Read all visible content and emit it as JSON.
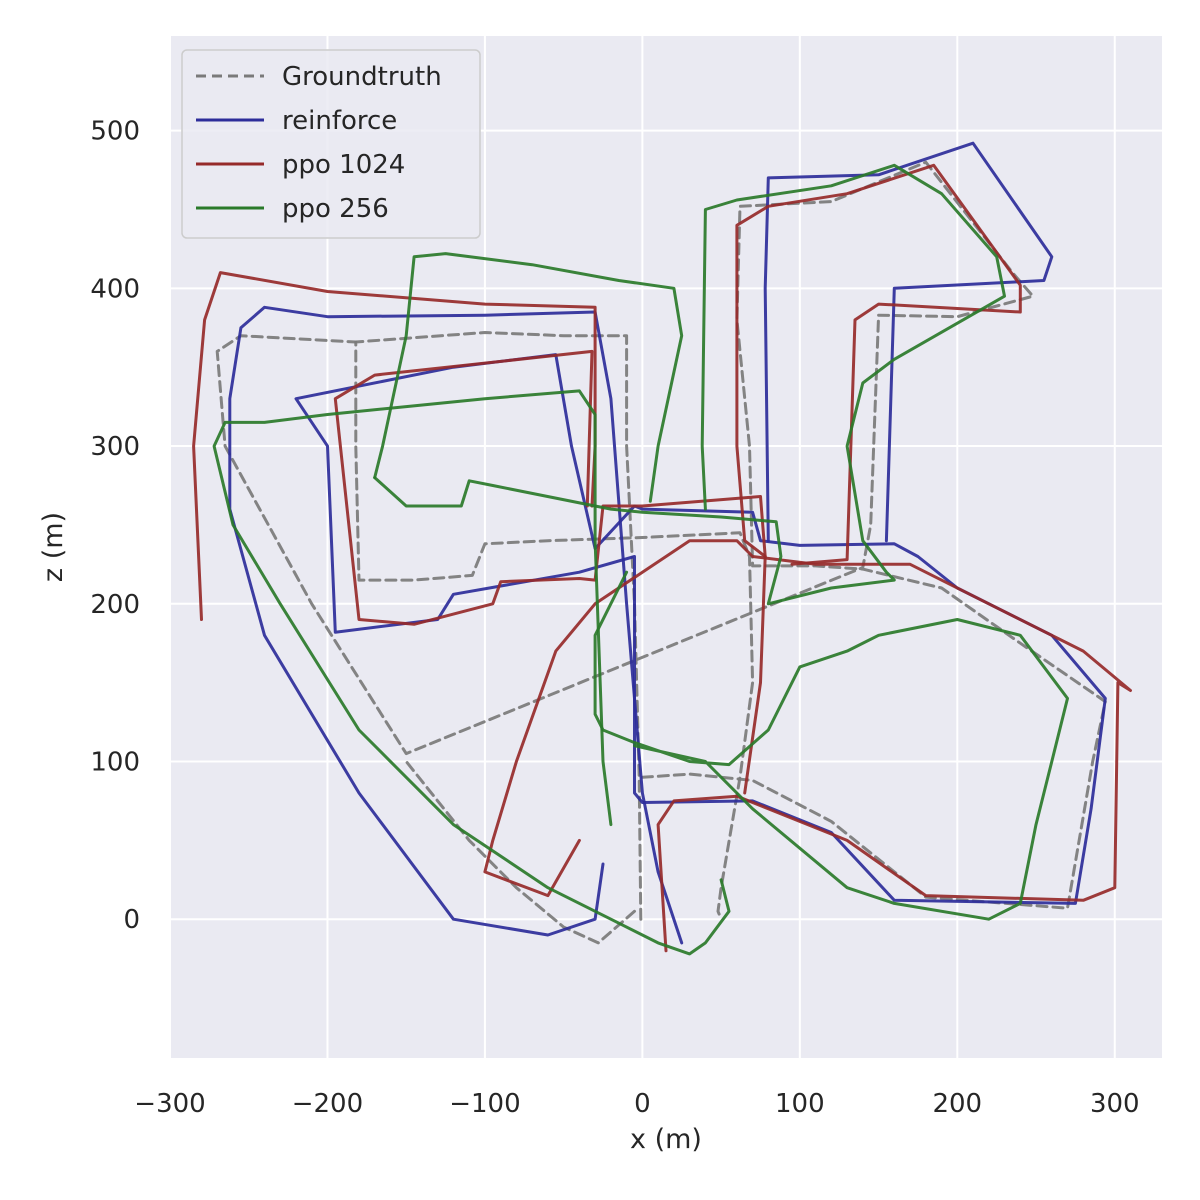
{
  "chart_data": {
    "type": "line",
    "xlabel": "x (m)",
    "ylabel": "z (m)",
    "xlim": [
      -300,
      330
    ],
    "ylim": [
      -88,
      560
    ],
    "xticks": [
      -300,
      -200,
      -100,
      0,
      100,
      200,
      300
    ],
    "yticks": [
      0,
      100,
      200,
      300,
      400,
      500
    ],
    "xtick_labels": [
      "−300",
      "−200",
      "−100",
      "0",
      "100",
      "200",
      "300"
    ],
    "ytick_labels": [
      "0",
      "100",
      "200",
      "300",
      "400",
      "500"
    ],
    "grid": true,
    "legend_position": "upper-left",
    "series": [
      {
        "name": "Groundtruth",
        "color": "#7a7a7a",
        "dashed": true,
        "points": [
          [
            -1,
            0
          ],
          [
            -2,
            90
          ],
          [
            -5,
            200
          ],
          [
            -10,
            300
          ],
          [
            -10,
            370
          ],
          [
            -50,
            370
          ],
          [
            -100,
            372
          ],
          [
            -182,
            366
          ],
          [
            -182,
            300
          ],
          [
            -180,
            215
          ],
          [
            -145,
            215
          ],
          [
            -108,
            218
          ],
          [
            -100,
            238
          ],
          [
            -60,
            240
          ],
          [
            0,
            242
          ],
          [
            62,
            245
          ],
          [
            68,
            230
          ],
          [
            70,
            150
          ],
          [
            62,
            90
          ],
          [
            50,
            20
          ],
          [
            48,
            5
          ],
          [
            50,
            0
          ]
        ],
        "extra_points": [
          [
            0,
            90
          ],
          [
            30,
            92
          ],
          [
            70,
            88
          ],
          [
            120,
            62
          ],
          [
            180,
            14
          ],
          [
            270,
            7
          ],
          [
            286,
            100
          ],
          [
            294,
            138
          ],
          [
            240,
            175
          ],
          [
            190,
            210
          ],
          [
            140,
            222
          ],
          [
            110,
            224
          ],
          [
            70,
            224
          ],
          [
            68,
            300
          ],
          [
            60,
            380
          ],
          [
            62,
            452
          ],
          [
            120,
            455
          ],
          [
            180,
            480
          ],
          [
            235,
            410
          ],
          [
            248,
            395
          ],
          [
            200,
            382
          ],
          [
            150,
            383
          ],
          [
            145,
            250
          ],
          [
            140,
            223
          ],
          [
            -150,
            105
          ],
          [
            -210,
            200
          ],
          [
            -265,
            300
          ],
          [
            -270,
            360
          ],
          [
            -255,
            370
          ],
          [
            -182,
            366
          ]
        ],
        "tail": [
          [
            -5,
            5
          ],
          [
            -28,
            -15
          ],
          [
            -50,
            -5
          ],
          [
            -80,
            20
          ],
          [
            -110,
            50
          ],
          [
            -150,
            100
          ]
        ]
      },
      {
        "name": "reinforce",
        "color": "#2d2d9a",
        "dashed": false,
        "points": [
          [
            25,
            -15
          ],
          [
            10,
            30
          ],
          [
            0,
            80
          ],
          [
            -10,
            200
          ],
          [
            -20,
            330
          ],
          [
            -30,
            385
          ],
          [
            -100,
            383
          ],
          [
            -200,
            382
          ],
          [
            -240,
            388
          ],
          [
            -255,
            375
          ],
          [
            -262,
            330
          ],
          [
            -262,
            260
          ],
          [
            -240,
            180
          ],
          [
            -180,
            80
          ],
          [
            -120,
            0
          ],
          [
            -60,
            -10
          ],
          [
            -30,
            0
          ],
          [
            -25,
            35
          ]
        ],
        "extra_points": [
          [
            -195,
            182
          ],
          [
            -200,
            300
          ],
          [
            -220,
            330
          ],
          [
            -120,
            350
          ],
          [
            -55,
            358
          ],
          [
            -45,
            300
          ],
          [
            -30,
            235
          ],
          [
            -5,
            262
          ],
          [
            0,
            260
          ],
          [
            70,
            258
          ],
          [
            75,
            240
          ],
          [
            100,
            237
          ],
          [
            160,
            238
          ],
          [
            175,
            230
          ],
          [
            200,
            210
          ],
          [
            260,
            180
          ],
          [
            294,
            140
          ],
          [
            285,
            70
          ],
          [
            275,
            10
          ],
          [
            160,
            12
          ],
          [
            120,
            55
          ],
          [
            70,
            75
          ],
          [
            0,
            74
          ],
          [
            -5,
            80
          ],
          [
            -5,
            230
          ],
          [
            -40,
            220
          ],
          [
            -120,
            206
          ],
          [
            -130,
            190
          ],
          [
            -195,
            182
          ]
        ],
        "extra2": [
          [
            80,
            240
          ],
          [
            78,
            400
          ],
          [
            80,
            470
          ],
          [
            150,
            472
          ],
          [
            210,
            492
          ],
          [
            260,
            420
          ],
          [
            255,
            405
          ],
          [
            160,
            400
          ],
          [
            155,
            240
          ]
        ]
      },
      {
        "name": "ppo 1024",
        "color": "#962a2a",
        "dashed": false,
        "points": [
          [
            15,
            -20
          ],
          [
            10,
            60
          ],
          [
            20,
            75
          ],
          [
            60,
            78
          ],
          [
            130,
            50
          ],
          [
            180,
            15
          ],
          [
            280,
            12
          ],
          [
            300,
            20
          ],
          [
            302,
            150
          ],
          [
            310,
            145
          ],
          [
            280,
            170
          ],
          [
            220,
            200
          ],
          [
            170,
            225
          ],
          [
            110,
            225
          ],
          [
            70,
            230
          ],
          [
            60,
            240
          ],
          [
            30,
            240
          ],
          [
            0,
            220
          ],
          [
            -30,
            200
          ],
          [
            -55,
            170
          ],
          [
            -80,
            100
          ],
          [
            -95,
            50
          ],
          [
            -100,
            30
          ],
          [
            -60,
            15
          ],
          [
            -40,
            50
          ]
        ],
        "extra_points": [
          [
            -35,
            262
          ],
          [
            -32,
            360
          ],
          [
            -170,
            345
          ],
          [
            -195,
            330
          ],
          [
            -180,
            190
          ],
          [
            -145,
            187
          ],
          [
            -95,
            200
          ],
          [
            -90,
            214
          ],
          [
            -40,
            216
          ],
          [
            -30,
            215
          ],
          [
            -25,
            262
          ],
          [
            0,
            262
          ],
          [
            75,
            268
          ],
          [
            78,
            230
          ],
          [
            75,
            150
          ],
          [
            65,
            80
          ]
        ],
        "extra2": [
          [
            -280,
            190
          ],
          [
            -285,
            300
          ],
          [
            -278,
            380
          ],
          [
            -268,
            410
          ],
          [
            -200,
            398
          ],
          [
            -100,
            390
          ],
          [
            -30,
            388
          ],
          [
            -30,
            300
          ],
          [
            -32,
            262
          ]
        ],
        "extra3": [
          [
            95,
            225
          ],
          [
            130,
            228
          ],
          [
            135,
            380
          ],
          [
            150,
            390
          ],
          [
            240,
            385
          ],
          [
            240,
            402
          ],
          [
            185,
            478
          ],
          [
            130,
            460
          ],
          [
            80,
            452
          ],
          [
            60,
            440
          ],
          [
            60,
            300
          ],
          [
            65,
            240
          ],
          [
            78,
            230
          ]
        ]
      },
      {
        "name": "ppo 256",
        "color": "#2a7a2a",
        "dashed": false,
        "points": [
          [
            50,
            25
          ],
          [
            55,
            5
          ],
          [
            40,
            -15
          ],
          [
            30,
            -22
          ],
          [
            10,
            -15
          ],
          [
            -20,
            0
          ],
          [
            -60,
            20
          ],
          [
            -120,
            60
          ],
          [
            -180,
            120
          ],
          [
            -230,
            200
          ],
          [
            -260,
            250
          ],
          [
            -272,
            300
          ],
          [
            -265,
            315
          ],
          [
            -240,
            315
          ],
          [
            -200,
            320
          ],
          [
            -150,
            325
          ],
          [
            -100,
            330
          ],
          [
            -40,
            335
          ],
          [
            -30,
            320
          ],
          [
            -30,
            240
          ],
          [
            -25,
            100
          ],
          [
            -20,
            60
          ]
        ],
        "extra_points": [
          [
            -170,
            280
          ],
          [
            -150,
            262
          ],
          [
            -115,
            262
          ],
          [
            -110,
            278
          ],
          [
            -95,
            275
          ],
          [
            -30,
            262
          ],
          [
            -20,
            260
          ],
          [
            0,
            258
          ],
          [
            50,
            255
          ],
          [
            85,
            252
          ],
          [
            88,
            230
          ],
          [
            80,
            200
          ],
          [
            120,
            210
          ],
          [
            160,
            215
          ],
          [
            155,
            220
          ],
          [
            140,
            240
          ],
          [
            130,
            300
          ],
          [
            140,
            340
          ],
          [
            160,
            355
          ],
          [
            230,
            395
          ],
          [
            225,
            420
          ],
          [
            190,
            460
          ],
          [
            160,
            478
          ],
          [
            120,
            465
          ],
          [
            60,
            456
          ],
          [
            40,
            450
          ],
          [
            38,
            300
          ],
          [
            40,
            260
          ]
        ],
        "extra2": [
          [
            -170,
            280
          ],
          [
            -165,
            300
          ],
          [
            -150,
            370
          ],
          [
            -145,
            420
          ],
          [
            -125,
            422
          ],
          [
            -70,
            415
          ],
          [
            -15,
            405
          ],
          [
            20,
            400
          ],
          [
            25,
            370
          ],
          [
            10,
            300
          ],
          [
            5,
            265
          ]
        ],
        "extra3": [
          [
            -10,
            220
          ],
          [
            -30,
            180
          ],
          [
            -30,
            130
          ],
          [
            -25,
            120
          ],
          [
            -5,
            112
          ],
          [
            30,
            100
          ],
          [
            55,
            98
          ],
          [
            80,
            120
          ],
          [
            100,
            160
          ],
          [
            130,
            170
          ],
          [
            150,
            180
          ],
          [
            200,
            190
          ],
          [
            240,
            180
          ],
          [
            270,
            140
          ],
          [
            260,
            100
          ],
          [
            250,
            60
          ],
          [
            240,
            10
          ],
          [
            220,
            0
          ],
          [
            160,
            10
          ],
          [
            130,
            20
          ],
          [
            70,
            70
          ],
          [
            40,
            100
          ],
          [
            -5,
            110
          ]
        ]
      }
    ]
  }
}
